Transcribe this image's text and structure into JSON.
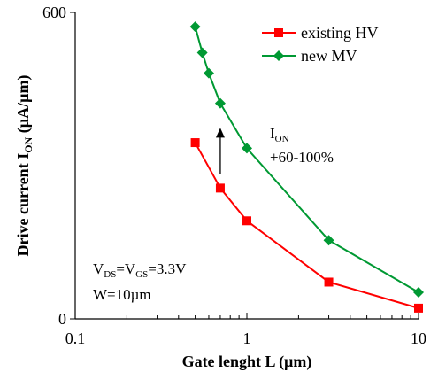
{
  "chart_data": {
    "type": "line",
    "x_scale": "log",
    "xlim": [
      0.1,
      10
    ],
    "ylim": [
      0,
      600
    ],
    "x_ticks": [
      {
        "value": 0.1,
        "label": "0.1"
      },
      {
        "value": 1,
        "label": "1"
      },
      {
        "value": 10,
        "label": "10"
      }
    ],
    "y_ticks": [
      {
        "value": 0,
        "label": "0"
      },
      {
        "value": 600,
        "label": "600"
      }
    ],
    "xlabel": "Gate lenght L (µm)",
    "ylabel": {
      "main": "Drive current I",
      "sub": "ON",
      "tail": " (µA/µm)"
    },
    "grid": false,
    "legend_position": "top-right",
    "series": [
      {
        "name": "existing HV",
        "color": "#ff0000",
        "marker": "square",
        "x": [
          0.5,
          0.7,
          1,
          3,
          10
        ],
        "y": [
          345,
          256,
          192,
          72,
          21
        ]
      },
      {
        "name": "new MV",
        "color": "#009933",
        "marker": "diamond",
        "x": [
          0.5,
          0.55,
          0.6,
          0.7,
          1,
          3,
          10
        ],
        "y": [
          572,
          521,
          481,
          422,
          334,
          154,
          52
        ]
      }
    ],
    "annotations": {
      "ion": {
        "main": "I",
        "sub": "ON",
        "change": "+60-100%"
      },
      "conditions": {
        "line1": [
          {
            "t": "V",
            "sub": false
          },
          {
            "t": "DS",
            "sub": true
          },
          {
            "t": "=V",
            "sub": false
          },
          {
            "t": "GS",
            "sub": true
          },
          {
            "t": "=3.3V",
            "sub": false
          }
        ],
        "line2": "W=10µm"
      },
      "arrow": {
        "x": 0.7,
        "y_from": 283,
        "y_to": 374
      }
    }
  }
}
